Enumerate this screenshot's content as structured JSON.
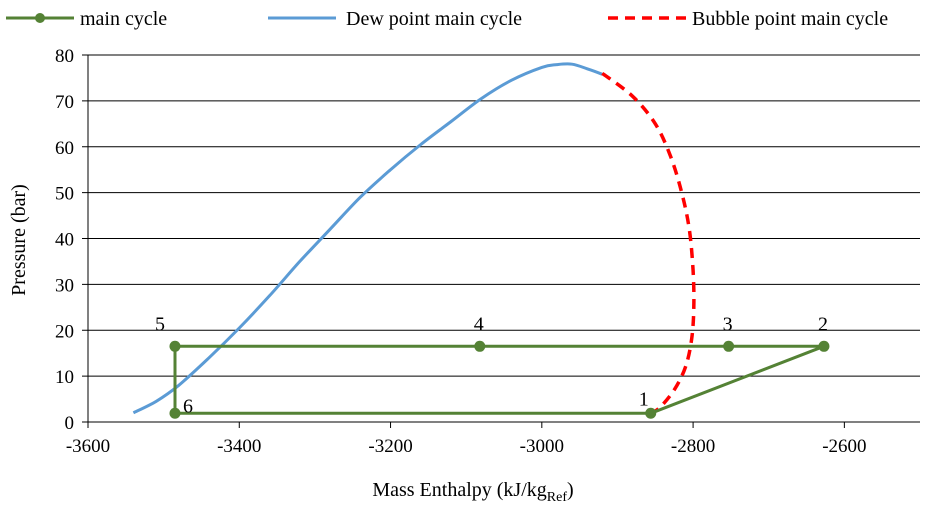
{
  "chart_data": {
    "type": "line",
    "xlabel": "Mass Enthalpy (kJ/kg",
    "xlabel_sub": "Ref",
    "xlabel_end": ")",
    "ylabel": "Pressure (bar)",
    "xlim": [
      -3600,
      -2500
    ],
    "ylim": [
      0,
      80
    ],
    "x_ticks": [
      -3600,
      -3400,
      -3200,
      -3000,
      -2800,
      -2600
    ],
    "y_ticks": [
      0,
      10,
      20,
      30,
      40,
      50,
      60,
      70,
      80
    ],
    "x_tick_labels": [
      "-3600",
      "-3400",
      "-3200",
      "-3000",
      "-2800",
      "-2600"
    ],
    "y_tick_labels": [
      "0",
      "10",
      "20",
      "30",
      "40",
      "50",
      "60",
      "70",
      "80"
    ],
    "grid": "horizontal",
    "legend_position": "top",
    "series": [
      {
        "name": "main cycle",
        "color": "#548235",
        "style": "solid-markers",
        "x": [
          -2856,
          -2627,
          -2753,
          -3082,
          -3485,
          -3485,
          -2856
        ],
        "y": [
          1.9,
          16.5,
          16.5,
          16.5,
          16.5,
          1.9,
          1.9
        ]
      },
      {
        "name": "Dew point main cycle",
        "color": "#5B9BD5",
        "style": "solid",
        "x": [
          -3540,
          -3510,
          -3480,
          -3440,
          -3400,
          -3360,
          -3320,
          -3280,
          -3240,
          -3200,
          -3160,
          -3120,
          -3080,
          -3040,
          -3000,
          -2980,
          -2960,
          -2940,
          -2920
        ],
        "y": [
          2,
          4.5,
          8,
          14,
          20.5,
          27.5,
          35,
          42,
          49,
          55,
          60.5,
          65.5,
          70.5,
          74.5,
          77.3,
          77.9,
          78.0,
          77.0,
          75.8
        ]
      },
      {
        "name": "Bubble point main cycle",
        "color": "#FF0000",
        "style": "dashed",
        "x": [
          -2920,
          -2880,
          -2850,
          -2830,
          -2815,
          -2805,
          -2800,
          -2799,
          -2802,
          -2810,
          -2825,
          -2845,
          -2860
        ],
        "y": [
          76,
          71,
          65,
          58,
          50,
          42,
          33,
          25,
          18,
          12,
          7,
          3,
          1.5
        ]
      }
    ],
    "point_labels": [
      {
        "text": "1",
        "x": -2856,
        "y": 1.9
      },
      {
        "text": "2",
        "x": -2627,
        "y": 16.5
      },
      {
        "text": "3",
        "x": -2753,
        "y": 16.5
      },
      {
        "text": "4",
        "x": -3082,
        "y": 16.5
      },
      {
        "text": "5",
        "x": -3485,
        "y": 16.5
      },
      {
        "text": "6",
        "x": -3485,
        "y": 1.9
      }
    ]
  }
}
